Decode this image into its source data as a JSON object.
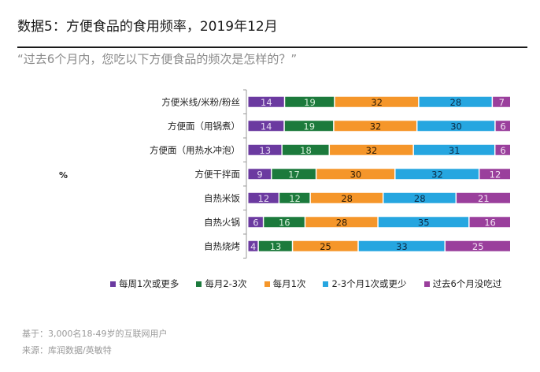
{
  "title": "数据5：方便食品的食用频率，2019年12月",
  "question": "“过去6个月内，您吃以下方便食品的频次是怎样的？”",
  "unit_label": "%",
  "footnotes": {
    "base": "基于：3,000名18-49岁的互联网用户",
    "source": "来源：库润数据/英敏特"
  },
  "chart_data": {
    "type": "bar",
    "orientation": "horizontal",
    "stacked": true,
    "title": "数据5：方便食品的食用频率，2019年12月",
    "subtitle": "“过去6个月内，您吃以下方便食品的频次是怎样的？”",
    "xlabel": "",
    "ylabel": "%",
    "xlim": [
      0,
      100
    ],
    "grid": false,
    "legend_position": "bottom",
    "categories": [
      "方便米线/米粉/粉丝",
      "方便面（用锅煮）",
      "方便面（用热水冲泡）",
      "方便干拌面",
      "自热米饭",
      "自热火锅",
      "自热烧烤"
    ],
    "series": [
      {
        "name": "每周1次或更多",
        "color": "#6b3aa0",
        "label_color": "#e6dcf2",
        "values": [
          14,
          14,
          13,
          9,
          12,
          6,
          4
        ]
      },
      {
        "name": "每月2-3次",
        "color": "#1c7a3c",
        "label_color": "#d6efd9",
        "values": [
          19,
          19,
          18,
          17,
          12,
          16,
          13
        ]
      },
      {
        "name": "每月1次",
        "color": "#f5962a",
        "label_color": "#2b1a05",
        "values": [
          32,
          32,
          32,
          30,
          28,
          28,
          25
        ]
      },
      {
        "name": "2-3个月1次或更少",
        "color": "#26a6e0",
        "label_color": "#0b2a45",
        "values": [
          28,
          30,
          31,
          32,
          28,
          35,
          33
        ]
      },
      {
        "name": "过去6个月没吃过",
        "color": "#9a3f9c",
        "label_color": "#f3e3f3",
        "values": [
          7,
          6,
          6,
          12,
          21,
          16,
          25
        ]
      }
    ]
  }
}
